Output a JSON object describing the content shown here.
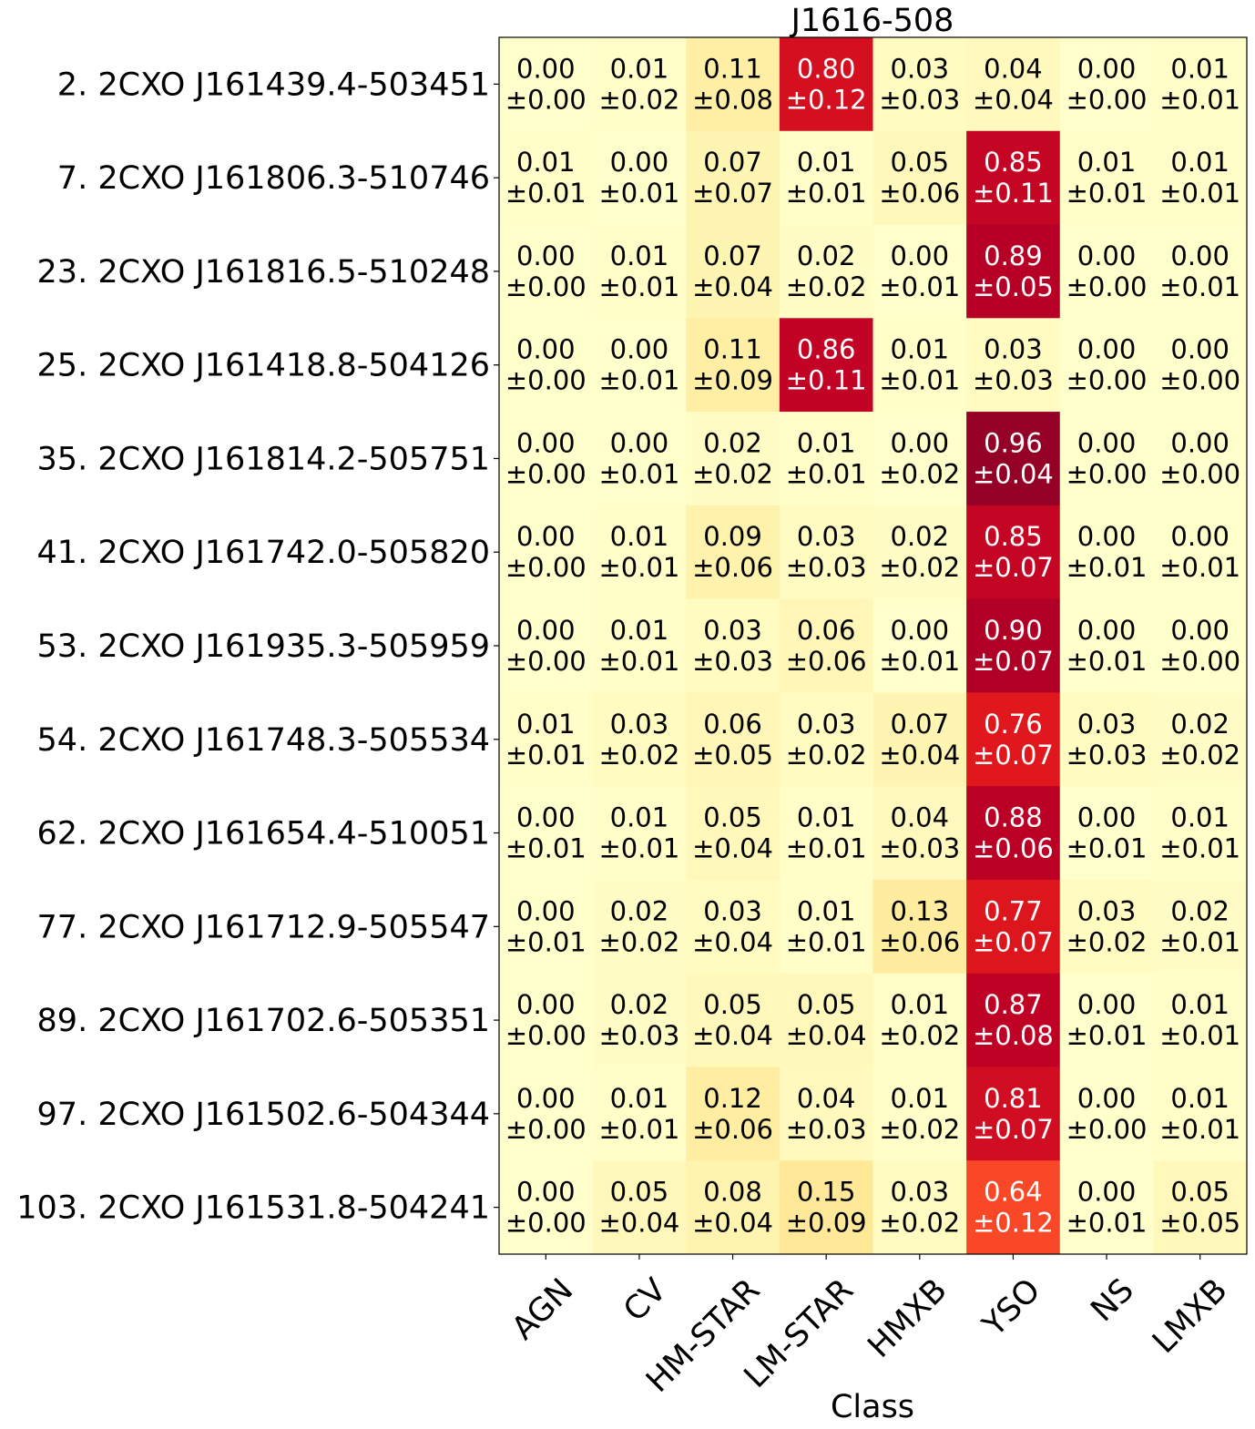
{
  "chart_data": {
    "type": "heatmap",
    "title": "J1616-508",
    "xlabel": "Class",
    "ylabel": "",
    "columns": [
      "AGN",
      "CV",
      "HM-STAR",
      "LM-STAR",
      "HMXB",
      "YSO",
      "NS",
      "LMXB"
    ],
    "rows": [
      "2. 2CXO J161439.4-503451",
      "7. 2CXO J161806.3-510746",
      "23. 2CXO J161816.5-510248",
      "25. 2CXO J161418.8-504126",
      "35. 2CXO J161814.2-505751",
      "41. 2CXO J161742.0-505820",
      "53. 2CXO J161935.3-505959",
      "54. 2CXO J161748.3-505534",
      "62. 2CXO J161654.4-510051",
      "77. 2CXO J161712.9-505547",
      "89. 2CXO J161702.6-505351",
      "97. 2CXO J161502.6-504344",
      "103. 2CXO J161531.8-504241"
    ],
    "values": [
      [
        "0.00",
        "0.01",
        "0.11",
        "0.80",
        "0.03",
        "0.04",
        "0.00",
        "0.01"
      ],
      [
        "0.01",
        "0.00",
        "0.07",
        "0.01",
        "0.05",
        "0.85",
        "0.01",
        "0.01"
      ],
      [
        "0.00",
        "0.01",
        "0.07",
        "0.02",
        "0.00",
        "0.89",
        "0.00",
        "0.00"
      ],
      [
        "0.00",
        "0.00",
        "0.11",
        "0.86",
        "0.01",
        "0.03",
        "0.00",
        "0.00"
      ],
      [
        "0.00",
        "0.00",
        "0.02",
        "0.01",
        "0.00",
        "0.96",
        "0.00",
        "0.00"
      ],
      [
        "0.00",
        "0.01",
        "0.09",
        "0.03",
        "0.02",
        "0.85",
        "0.00",
        "0.00"
      ],
      [
        "0.00",
        "0.01",
        "0.03",
        "0.06",
        "0.00",
        "0.90",
        "0.00",
        "0.00"
      ],
      [
        "0.01",
        "0.03",
        "0.06",
        "0.03",
        "0.07",
        "0.76",
        "0.03",
        "0.02"
      ],
      [
        "0.00",
        "0.01",
        "0.05",
        "0.01",
        "0.04",
        "0.88",
        "0.00",
        "0.01"
      ],
      [
        "0.00",
        "0.02",
        "0.03",
        "0.01",
        "0.13",
        "0.77",
        "0.03",
        "0.02"
      ],
      [
        "0.00",
        "0.02",
        "0.05",
        "0.05",
        "0.01",
        "0.87",
        "0.00",
        "0.01"
      ],
      [
        "0.00",
        "0.01",
        "0.12",
        "0.04",
        "0.01",
        "0.81",
        "0.00",
        "0.01"
      ],
      [
        "0.00",
        "0.05",
        "0.08",
        "0.15",
        "0.03",
        "0.64",
        "0.00",
        "0.05"
      ]
    ],
    "errors": [
      [
        "±0.00",
        "±0.02",
        "±0.08",
        "±0.12",
        "±0.03",
        "±0.04",
        "±0.00",
        "±0.01"
      ],
      [
        "±0.01",
        "±0.01",
        "±0.07",
        "±0.01",
        "±0.06",
        "±0.11",
        "±0.01",
        "±0.01"
      ],
      [
        "±0.00",
        "±0.01",
        "±0.04",
        "±0.02",
        "±0.01",
        "±0.05",
        "±0.00",
        "±0.01"
      ],
      [
        "±0.00",
        "±0.01",
        "±0.09",
        "±0.11",
        "±0.01",
        "±0.03",
        "±0.00",
        "±0.00"
      ],
      [
        "±0.00",
        "±0.01",
        "±0.02",
        "±0.01",
        "±0.02",
        "±0.04",
        "±0.00",
        "±0.00"
      ],
      [
        "±0.00",
        "±0.01",
        "±0.06",
        "±0.03",
        "±0.02",
        "±0.07",
        "±0.01",
        "±0.01"
      ],
      [
        "±0.00",
        "±0.01",
        "±0.03",
        "±0.06",
        "±0.01",
        "±0.07",
        "±0.01",
        "±0.00"
      ],
      [
        "±0.01",
        "±0.02",
        "±0.05",
        "±0.02",
        "±0.04",
        "±0.07",
        "±0.03",
        "±0.02"
      ],
      [
        "±0.01",
        "±0.01",
        "±0.04",
        "±0.01",
        "±0.03",
        "±0.06",
        "±0.01",
        "±0.01"
      ],
      [
        "±0.01",
        "±0.02",
        "±0.04",
        "±0.01",
        "±0.06",
        "±0.07",
        "±0.02",
        "±0.01"
      ],
      [
        "±0.00",
        "±0.03",
        "±0.04",
        "±0.04",
        "±0.02",
        "±0.08",
        "±0.01",
        "±0.01"
      ],
      [
        "±0.00",
        "±0.01",
        "±0.06",
        "±0.03",
        "±0.02",
        "±0.07",
        "±0.00",
        "±0.01"
      ],
      [
        "±0.00",
        "±0.04",
        "±0.04",
        "±0.09",
        "±0.02",
        "±0.12",
        "±0.01",
        "±0.05"
      ]
    ],
    "colormap": "YlOrRd",
    "vmin": 0,
    "vmax": 1,
    "grid": false,
    "legend": "none"
  }
}
